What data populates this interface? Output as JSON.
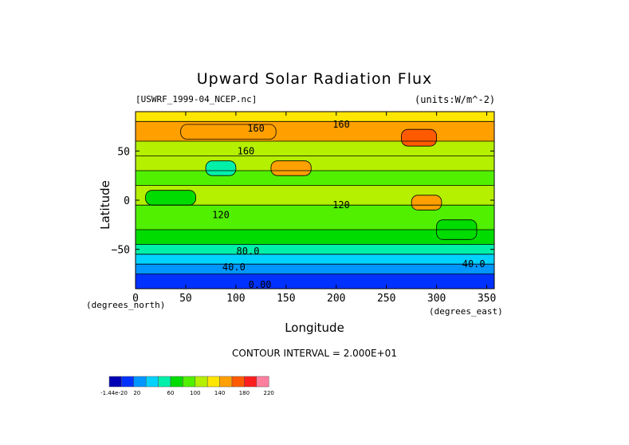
{
  "chart_data": {
    "type": "heatmap",
    "title": "Upward Solar Radiation Flux",
    "subtitle_left": "[USWRF_1999-04_NCEP.nc]",
    "subtitle_right": "(units:W/m^-2)",
    "xlabel": "Longitude",
    "ylabel": "Latitude",
    "x_units": "(degrees_east)",
    "y_units": "(degrees_north)",
    "xlim": [
      0,
      357.5
    ],
    "ylim": [
      -90,
      90
    ],
    "x_ticks": [
      0,
      50,
      100,
      150,
      200,
      250,
      300,
      350
    ],
    "y_ticks": [
      -50,
      0,
      50
    ],
    "x_tick_labels": [
      "0",
      "50",
      "100",
      "150",
      "200",
      "250",
      "300",
      "350"
    ],
    "y_tick_labels": [
      "−50",
      "0",
      "50"
    ],
    "contour_interval_label": "CONTOUR INTERVAL = 2.000E+01",
    "contour_labels": [
      {
        "text": "160",
        "lon": 120,
        "lat": 73
      },
      {
        "text": "160",
        "lon": 205,
        "lat": 77
      },
      {
        "text": "160",
        "lon": 110,
        "lat": 50
      },
      {
        "text": "120",
        "lon": 85,
        "lat": -15
      },
      {
        "text": "120",
        "lon": 205,
        "lat": -5
      },
      {
        "text": "80.0",
        "lon": 112,
        "lat": -52
      },
      {
        "text": "40.0",
        "lon": 98,
        "lat": -68
      },
      {
        "text": "40.0",
        "lon": 337,
        "lat": -65
      },
      {
        "text": "0.00",
        "lon": 124,
        "lat": -86
      }
    ],
    "colorbar": {
      "colors": [
        "#0000b4",
        "#0032ff",
        "#0096ff",
        "#00d2ff",
        "#00f0aa",
        "#00dc00",
        "#50f000",
        "#b4f000",
        "#ffe600",
        "#ffa000",
        "#ff5a00",
        "#ff1e1e",
        "#ff7f9f"
      ],
      "tick_labels": [
        "-1.44e-20",
        "20",
        "60",
        "100",
        "140",
        "180",
        "220"
      ],
      "levels": [
        0,
        20,
        40,
        60,
        80,
        100,
        120,
        140,
        160,
        180,
        200,
        220
      ]
    },
    "latitude_bands": [
      {
        "lat_range": [
          -90,
          -75
        ],
        "value": 10
      },
      {
        "lat_range": [
          -75,
          -65
        ],
        "value": 30
      },
      {
        "lat_range": [
          -65,
          -55
        ],
        "value": 50
      },
      {
        "lat_range": [
          -55,
          -45
        ],
        "value": 75
      },
      {
        "lat_range": [
          -45,
          -30
        ],
        "value": 95
      },
      {
        "lat_range": [
          -30,
          -5
        ],
        "value": 110
      },
      {
        "lat_range": [
          -5,
          15
        ],
        "value": 120
      },
      {
        "lat_range": [
          15,
          30
        ],
        "value": 110
      },
      {
        "lat_range": [
          30,
          45
        ],
        "value": 125
      },
      {
        "lat_range": [
          45,
          60
        ],
        "value": 135
      },
      {
        "lat_range": [
          60,
          80
        ],
        "value": 165
      },
      {
        "lat_range": [
          80,
          90
        ],
        "value": 145
      }
    ],
    "regions": [
      {
        "name": "",
        "lon_range": [
          45,
          140
        ],
        "lat_range": [
          62,
          77
        ],
        "value": 170
      },
      {
        "name": "",
        "lon_range": [
          265,
          300
        ],
        "lat_range": [
          55,
          72
        ],
        "value": 190
      },
      {
        "name": "",
        "lon_range": [
          275,
          305
        ],
        "lat_range": [
          -10,
          5
        ],
        "value": 170
      },
      {
        "name": "",
        "lon_range": [
          135,
          175
        ],
        "lat_range": [
          25,
          40
        ],
        "value": 170
      },
      {
        "name": "",
        "lon_range": [
          70,
          100
        ],
        "lat_range": [
          25,
          40
        ],
        "value": 60
      },
      {
        "name": "",
        "lon_range": [
          10,
          60
        ],
        "lat_range": [
          -5,
          10
        ],
        "value": 90
      },
      {
        "name": "",
        "lon_range": [
          300,
          340
        ],
        "lat_range": [
          -40,
          -20
        ],
        "value": 95
      }
    ]
  }
}
